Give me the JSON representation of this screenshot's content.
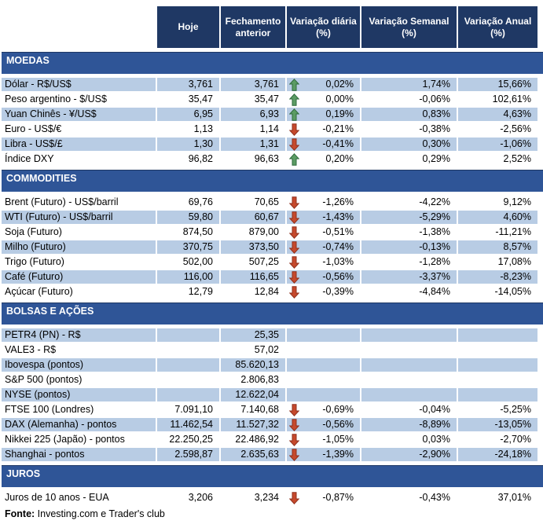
{
  "colors": {
    "header_bg": "#1F3864",
    "section_bg": "#2F5597",
    "row_stripe": "#B8CCE4",
    "up_arrow_fill": "#5B9C64",
    "up_arrow_border": "#2F6B3C",
    "down_arrow_fill": "#C6492C",
    "down_arrow_border": "#8F2F1B"
  },
  "table": {
    "columns": [
      "Hoje",
      "Fechamento anterior",
      "Variação diária (%)",
      "Variação Semanal (%)",
      "Variação Anual (%)"
    ],
    "sections": [
      {
        "title": "MOEDAS",
        "first_row_shaded": true,
        "rows": [
          {
            "label": "Dólar - R$/US$",
            "hoje": "3,761",
            "fechamento": "3,761",
            "arrow": "up",
            "diaria": "0,02%",
            "semanal": "1,74%",
            "anual": "15,66%"
          },
          {
            "label": "Peso argentino - $/US$",
            "hoje": "35,47",
            "fechamento": "35,47",
            "arrow": "up",
            "diaria": "0,00%",
            "semanal": "-0,06%",
            "anual": "102,61%"
          },
          {
            "label": "Yuan Chinês - ¥/US$",
            "hoje": "6,95",
            "fechamento": "6,93",
            "arrow": "up",
            "diaria": "0,19%",
            "semanal": "0,83%",
            "anual": "4,63%"
          },
          {
            "label": "Euro - US$/€",
            "hoje": "1,13",
            "fechamento": "1,14",
            "arrow": "down",
            "diaria": "-0,21%",
            "semanal": "-0,38%",
            "anual": "-2,56%"
          },
          {
            "label": "Libra - US$/£",
            "hoje": "1,30",
            "fechamento": "1,31",
            "arrow": "down",
            "diaria": "-0,41%",
            "semanal": "0,30%",
            "anual": "-1,06%"
          },
          {
            "label": "Índice DXY",
            "hoje": "96,82",
            "fechamento": "96,63",
            "arrow": "up",
            "diaria": "0,20%",
            "semanal": "0,29%",
            "anual": "2,52%"
          }
        ]
      },
      {
        "title": "COMMODITIES",
        "first_row_shaded": false,
        "rows": [
          {
            "label": "Brent (Futuro) - US$/barril",
            "hoje": "69,76",
            "fechamento": "70,65",
            "arrow": "down",
            "diaria": "-1,26%",
            "semanal": "-4,22%",
            "anual": "9,12%"
          },
          {
            "label": "WTI (Futuro) - US$/barril",
            "hoje": "59,80",
            "fechamento": "60,67",
            "arrow": "down",
            "diaria": "-1,43%",
            "semanal": "-5,29%",
            "anual": "4,60%"
          },
          {
            "label": "Soja (Futuro)",
            "hoje": "874,50",
            "fechamento": "879,00",
            "arrow": "down",
            "diaria": "-0,51%",
            "semanal": "-1,38%",
            "anual": "-11,21%"
          },
          {
            "label": "Milho (Futuro)",
            "hoje": "370,75",
            "fechamento": "373,50",
            "arrow": "down",
            "diaria": "-0,74%",
            "semanal": "-0,13%",
            "anual": "8,57%"
          },
          {
            "label": "Trigo (Futuro)",
            "hoje": "502,00",
            "fechamento": "507,25",
            "arrow": "down",
            "diaria": "-1,03%",
            "semanal": "-1,28%",
            "anual": "17,08%"
          },
          {
            "label": "Café (Futuro)",
            "hoje": "116,00",
            "fechamento": "116,65",
            "arrow": "down",
            "diaria": "-0,56%",
            "semanal": "-3,37%",
            "anual": "-8,23%"
          },
          {
            "label": "Açúcar (Futuro)",
            "hoje": "12,79",
            "fechamento": "12,84",
            "arrow": "down",
            "diaria": "-0,39%",
            "semanal": "-4,84%",
            "anual": "-14,05%"
          }
        ]
      },
      {
        "title": "BOLSAS E AÇÕES",
        "first_row_shaded": true,
        "rows": [
          {
            "label": "PETR4 (PN) - R$",
            "hoje": "",
            "fechamento": "25,35",
            "arrow": "",
            "diaria": "",
            "semanal": "",
            "anual": ""
          },
          {
            "label": "VALE3 - R$",
            "hoje": "",
            "fechamento": "57,02",
            "arrow": "",
            "diaria": "",
            "semanal": "",
            "anual": ""
          },
          {
            "label": "Ibovespa (pontos)",
            "hoje": "",
            "fechamento": "85.620,13",
            "arrow": "",
            "diaria": "",
            "semanal": "",
            "anual": ""
          },
          {
            "label": "S&P 500 (pontos)",
            "hoje": "",
            "fechamento": "2.806,83",
            "arrow": "",
            "diaria": "",
            "semanal": "",
            "anual": ""
          },
          {
            "label": "NYSE (pontos)",
            "hoje": "",
            "fechamento": "12.622,04",
            "arrow": "",
            "diaria": "",
            "semanal": "",
            "anual": ""
          },
          {
            "label": "FTSE 100 (Londres)",
            "hoje": "7.091,10",
            "fechamento": "7.140,68",
            "arrow": "down",
            "diaria": "-0,69%",
            "semanal": "-0,04%",
            "anual": "-5,25%"
          },
          {
            "label": "DAX (Alemanha) - pontos",
            "hoje": "11.462,54",
            "fechamento": "11.527,32",
            "arrow": "down",
            "diaria": "-0,56%",
            "semanal": "-8,89%",
            "anual": "-13,05%"
          },
          {
            "label": "Nikkei 225 (Japão) - pontos",
            "hoje": "22.250,25",
            "fechamento": "22.486,92",
            "arrow": "down",
            "diaria": "-1,05%",
            "semanal": "0,03%",
            "anual": "-2,70%"
          },
          {
            "label": "Shanghai - pontos",
            "hoje": "2.598,87",
            "fechamento": "2.635,63",
            "arrow": "down",
            "diaria": "-1,39%",
            "semanal": "-2,90%",
            "anual": "-24,18%"
          }
        ]
      },
      {
        "title": "JUROS",
        "first_row_shaded": false,
        "rows": [
          {
            "label": "Juros de 10 anos - EUA",
            "hoje": "3,206",
            "fechamento": "3,234",
            "arrow": "down",
            "diaria": "-0,87%",
            "semanal": "-0,43%",
            "anual": "37,01%"
          }
        ]
      }
    ]
  },
  "footer": {
    "label": "Fonte:",
    "text": "Investing.com e Trader's club"
  }
}
